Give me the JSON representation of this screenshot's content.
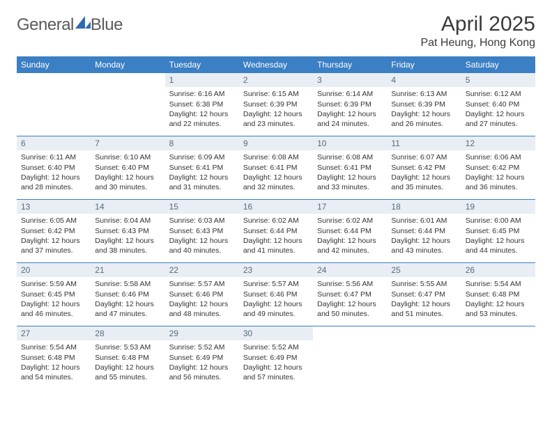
{
  "brand": {
    "word1": "General",
    "word2": "Blue",
    "logo_color": "#2e6bb0"
  },
  "colors": {
    "header_bg": "#3b7fc4",
    "header_text": "#ffffff",
    "daynum_bg": "#e8eef3",
    "daynum_text": "#5a6a78",
    "body_text": "#333333",
    "rule": "#3b7fc4"
  },
  "title": "April 2025",
  "location": "Pat Heung, Hong Kong",
  "weekdays": [
    "Sunday",
    "Monday",
    "Tuesday",
    "Wednesday",
    "Thursday",
    "Friday",
    "Saturday"
  ],
  "first_weekday_index": 2,
  "days": [
    {
      "n": "1",
      "sunrise": "6:16 AM",
      "sunset": "6:38 PM",
      "daylight": "12 hours and 22 minutes."
    },
    {
      "n": "2",
      "sunrise": "6:15 AM",
      "sunset": "6:39 PM",
      "daylight": "12 hours and 23 minutes."
    },
    {
      "n": "3",
      "sunrise": "6:14 AM",
      "sunset": "6:39 PM",
      "daylight": "12 hours and 24 minutes."
    },
    {
      "n": "4",
      "sunrise": "6:13 AM",
      "sunset": "6:39 PM",
      "daylight": "12 hours and 26 minutes."
    },
    {
      "n": "5",
      "sunrise": "6:12 AM",
      "sunset": "6:40 PM",
      "daylight": "12 hours and 27 minutes."
    },
    {
      "n": "6",
      "sunrise": "6:11 AM",
      "sunset": "6:40 PM",
      "daylight": "12 hours and 28 minutes."
    },
    {
      "n": "7",
      "sunrise": "6:10 AM",
      "sunset": "6:40 PM",
      "daylight": "12 hours and 30 minutes."
    },
    {
      "n": "8",
      "sunrise": "6:09 AM",
      "sunset": "6:41 PM",
      "daylight": "12 hours and 31 minutes."
    },
    {
      "n": "9",
      "sunrise": "6:08 AM",
      "sunset": "6:41 PM",
      "daylight": "12 hours and 32 minutes."
    },
    {
      "n": "10",
      "sunrise": "6:08 AM",
      "sunset": "6:41 PM",
      "daylight": "12 hours and 33 minutes."
    },
    {
      "n": "11",
      "sunrise": "6:07 AM",
      "sunset": "6:42 PM",
      "daylight": "12 hours and 35 minutes."
    },
    {
      "n": "12",
      "sunrise": "6:06 AM",
      "sunset": "6:42 PM",
      "daylight": "12 hours and 36 minutes."
    },
    {
      "n": "13",
      "sunrise": "6:05 AM",
      "sunset": "6:42 PM",
      "daylight": "12 hours and 37 minutes."
    },
    {
      "n": "14",
      "sunrise": "6:04 AM",
      "sunset": "6:43 PM",
      "daylight": "12 hours and 38 minutes."
    },
    {
      "n": "15",
      "sunrise": "6:03 AM",
      "sunset": "6:43 PM",
      "daylight": "12 hours and 40 minutes."
    },
    {
      "n": "16",
      "sunrise": "6:02 AM",
      "sunset": "6:44 PM",
      "daylight": "12 hours and 41 minutes."
    },
    {
      "n": "17",
      "sunrise": "6:02 AM",
      "sunset": "6:44 PM",
      "daylight": "12 hours and 42 minutes."
    },
    {
      "n": "18",
      "sunrise": "6:01 AM",
      "sunset": "6:44 PM",
      "daylight": "12 hours and 43 minutes."
    },
    {
      "n": "19",
      "sunrise": "6:00 AM",
      "sunset": "6:45 PM",
      "daylight": "12 hours and 44 minutes."
    },
    {
      "n": "20",
      "sunrise": "5:59 AM",
      "sunset": "6:45 PM",
      "daylight": "12 hours and 46 minutes."
    },
    {
      "n": "21",
      "sunrise": "5:58 AM",
      "sunset": "6:46 PM",
      "daylight": "12 hours and 47 minutes."
    },
    {
      "n": "22",
      "sunrise": "5:57 AM",
      "sunset": "6:46 PM",
      "daylight": "12 hours and 48 minutes."
    },
    {
      "n": "23",
      "sunrise": "5:57 AM",
      "sunset": "6:46 PM",
      "daylight": "12 hours and 49 minutes."
    },
    {
      "n": "24",
      "sunrise": "5:56 AM",
      "sunset": "6:47 PM",
      "daylight": "12 hours and 50 minutes."
    },
    {
      "n": "25",
      "sunrise": "5:55 AM",
      "sunset": "6:47 PM",
      "daylight": "12 hours and 51 minutes."
    },
    {
      "n": "26",
      "sunrise": "5:54 AM",
      "sunset": "6:48 PM",
      "daylight": "12 hours and 53 minutes."
    },
    {
      "n": "27",
      "sunrise": "5:54 AM",
      "sunset": "6:48 PM",
      "daylight": "12 hours and 54 minutes."
    },
    {
      "n": "28",
      "sunrise": "5:53 AM",
      "sunset": "6:48 PM",
      "daylight": "12 hours and 55 minutes."
    },
    {
      "n": "29",
      "sunrise": "5:52 AM",
      "sunset": "6:49 PM",
      "daylight": "12 hours and 56 minutes."
    },
    {
      "n": "30",
      "sunrise": "5:52 AM",
      "sunset": "6:49 PM",
      "daylight": "12 hours and 57 minutes."
    }
  ],
  "labels": {
    "sunrise": "Sunrise:",
    "sunset": "Sunset:",
    "daylight": "Daylight:"
  }
}
